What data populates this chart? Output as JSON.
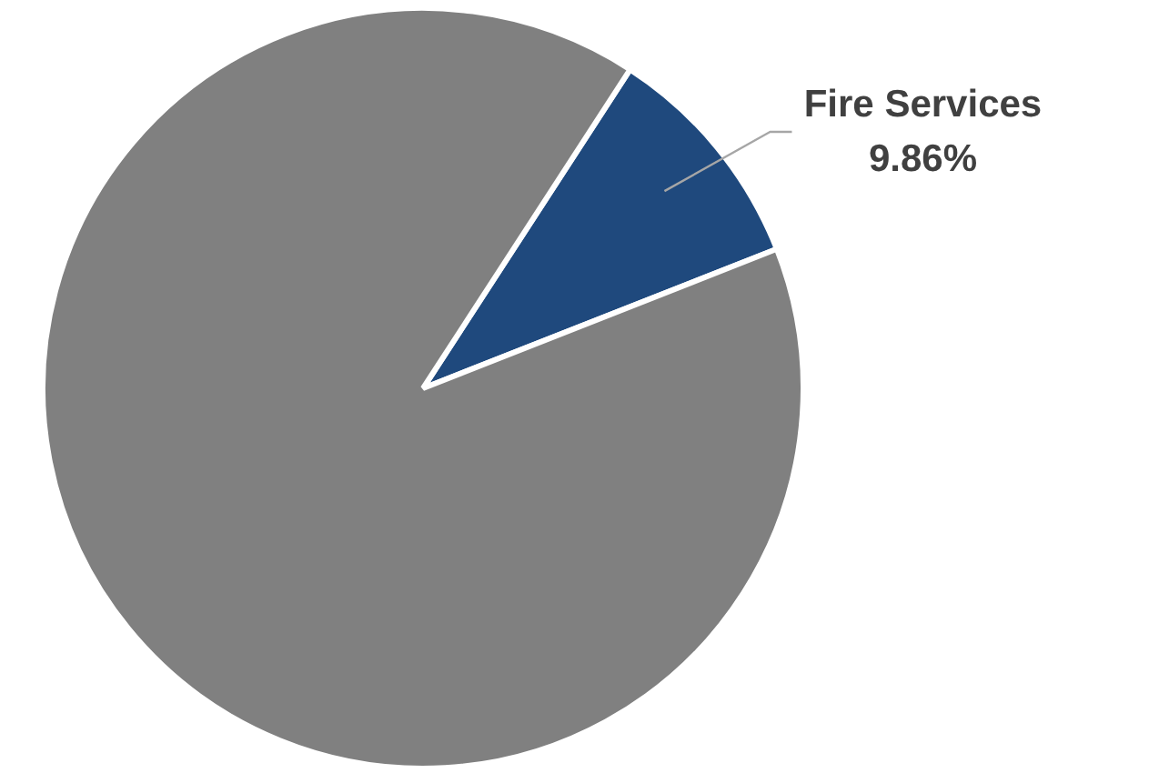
{
  "chart_data": {
    "type": "pie",
    "categories": [
      "Fire Services",
      null
    ],
    "values": [
      9.86,
      90.14
    ],
    "colors": [
      "#1f497d",
      "#808080"
    ],
    "value_labels": [
      "9.86%",
      null
    ]
  }
}
